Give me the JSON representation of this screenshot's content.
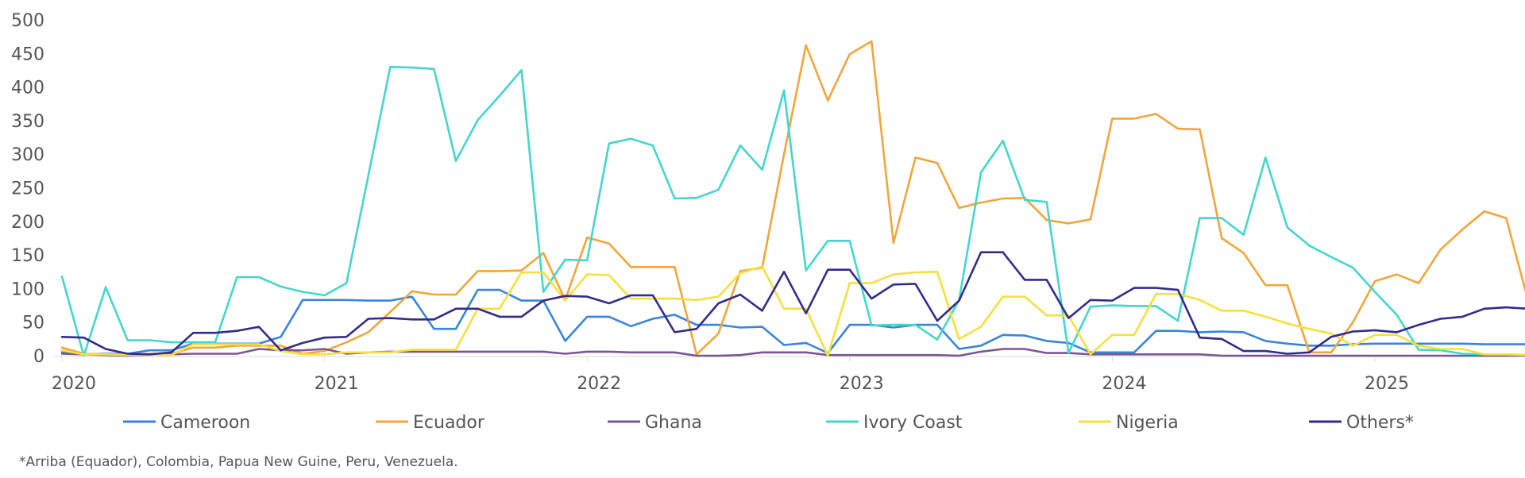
{
  "chart_data": {
    "type": "line",
    "title": "",
    "xlabel": "",
    "ylabel": "",
    "ylim": [
      0,
      500
    ],
    "yticks": [
      0,
      50,
      100,
      150,
      200,
      250,
      300,
      350,
      400,
      450,
      500
    ],
    "xtick_labels": [
      "2020",
      "2021",
      "2022",
      "2023",
      "2024",
      "2025"
    ],
    "x_start": "2020-01",
    "x_end": "2025-06",
    "grid": false,
    "legend_position": "bottom",
    "series": [
      {
        "name": "Cameroon",
        "color": "#3a85d8",
        "values": [
          5,
          2,
          3,
          3,
          8,
          8,
          18,
          18,
          18,
          18,
          28,
          83,
          83,
          83,
          82,
          82,
          88,
          40,
          40,
          98,
          98,
          82,
          82,
          22,
          58,
          58,
          44,
          55,
          61,
          46,
          46,
          42,
          43,
          16,
          19,
          4,
          46,
          46,
          42,
          46,
          46,
          10,
          15,
          31,
          30,
          22,
          19,
          5,
          5,
          5,
          37,
          37,
          35,
          36,
          35,
          22,
          18,
          15,
          15,
          17,
          18,
          18,
          18,
          18,
          18,
          17,
          17,
          17
        ]
      },
      {
        "name": "Ecuador",
        "color": "#f0a63c",
        "values": [
          12,
          3,
          2,
          2,
          3,
          3,
          12,
          12,
          15,
          15,
          15,
          3,
          7,
          20,
          35,
          65,
          96,
          91,
          91,
          126,
          126,
          127,
          153,
          83,
          176,
          167,
          132,
          132,
          132,
          2,
          33,
          126,
          131,
          300,
          462,
          380,
          449,
          468,
          168,
          295,
          287,
          220,
          228,
          234,
          235,
          202,
          197,
          203,
          353,
          353,
          360,
          338,
          337,
          175,
          153,
          105,
          105,
          5,
          5,
          50,
          111,
          121,
          108,
          158,
          188,
          215,
          205,
          82
        ]
      },
      {
        "name": "Ghana",
        "color": "#7d5594",
        "values": [
          3,
          2,
          1,
          0,
          1,
          2,
          3,
          3,
          3,
          10,
          8,
          8,
          10,
          3,
          5,
          6,
          6,
          6,
          6,
          6,
          6,
          6,
          6,
          3,
          6,
          6,
          5,
          5,
          5,
          0,
          0,
          1,
          5,
          5,
          5,
          1,
          1,
          1,
          1,
          1,
          1,
          0,
          6,
          10,
          10,
          4,
          4,
          2,
          2,
          2,
          2,
          2,
          2,
          0,
          0,
          0,
          0,
          0,
          0,
          0,
          0,
          0,
          0,
          0,
          0,
          0,
          0,
          0
        ]
      },
      {
        "name": "Ivory Coast",
        "color": "#44d6cc",
        "values": [
          118,
          0,
          102,
          23,
          23,
          20,
          20,
          20,
          117,
          117,
          103,
          95,
          90,
          108,
          268,
          430,
          429,
          427,
          290,
          351,
          387,
          425,
          95,
          143,
          142,
          316,
          323,
          313,
          234,
          235,
          247,
          313,
          277,
          395,
          127,
          171,
          171,
          45,
          46,
          46,
          24,
          83,
          273,
          320,
          232,
          229,
          4,
          73,
          75,
          74,
          74,
          52,
          205,
          205,
          180,
          295,
          191,
          164,
          147,
          131,
          95,
          61,
          9,
          8,
          3,
          2,
          2,
          1
        ]
      },
      {
        "name": "Nigeria",
        "color": "#f5e03c",
        "values": [
          8,
          2,
          2,
          1,
          1,
          1,
          17,
          17,
          17,
          17,
          7,
          2,
          2,
          5,
          5,
          5,
          9,
          9,
          9,
          70,
          70,
          124,
          124,
          82,
          121,
          120,
          85,
          85,
          85,
          83,
          88,
          123,
          133,
          70,
          70,
          0,
          108,
          108,
          121,
          124,
          125,
          25,
          43,
          88,
          88,
          60,
          60,
          2,
          31,
          31,
          92,
          92,
          83,
          67,
          67,
          58,
          48,
          40,
          33,
          15,
          31,
          31,
          15,
          10,
          10,
          2,
          2,
          1
        ]
      },
      {
        "name": "Others*",
        "color": "#332b8c",
        "values": [
          28,
          27,
          10,
          3,
          2,
          5,
          34,
          34,
          37,
          43,
          8,
          19,
          27,
          28,
          55,
          56,
          54,
          54,
          70,
          70,
          58,
          58,
          82,
          89,
          88,
          78,
          90,
          90,
          35,
          40,
          78,
          91,
          67,
          125,
          63,
          128,
          128,
          85,
          106,
          107,
          52,
          82,
          154,
          154,
          113,
          113,
          56,
          83,
          82,
          101,
          101,
          98,
          27,
          25,
          7,
          7,
          3,
          5,
          28,
          36,
          38,
          35,
          46,
          55,
          58,
          70,
          72,
          70
        ]
      }
    ]
  },
  "footnote": "*Arriba (Equador), Colombia, Papua New Guine, Peru, Venezuela."
}
